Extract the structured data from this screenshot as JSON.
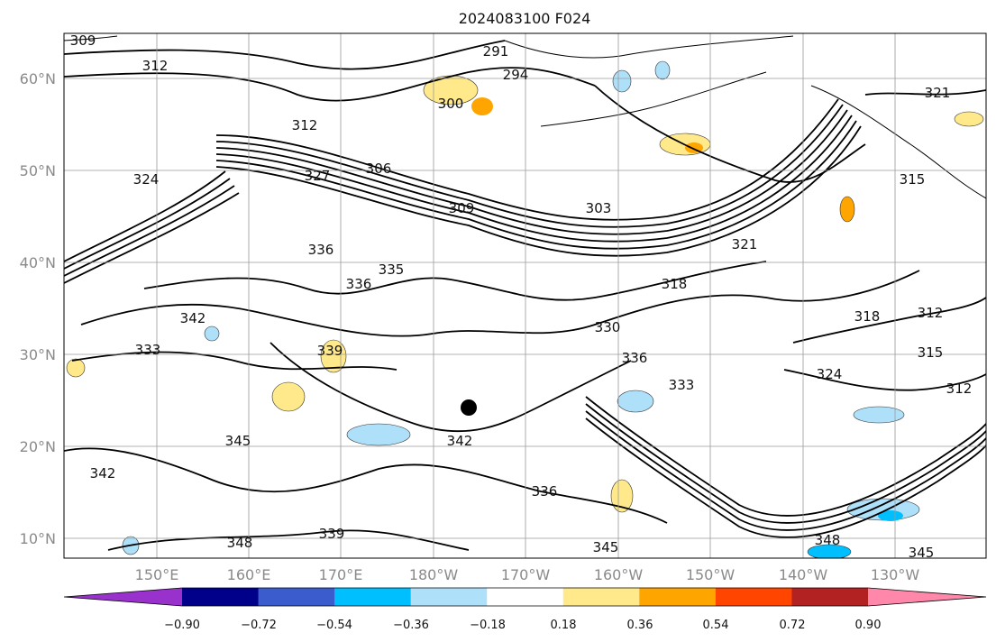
{
  "title": "2024083100 F024",
  "map": {
    "lat_labels": [
      "60°N",
      "50°N",
      "40°N",
      "30°N",
      "20°N",
      "10°N"
    ],
    "lon_labels": [
      "150°E",
      "160°E",
      "170°E",
      "180°W",
      "170°W",
      "160°W",
      "150°W",
      "140°W",
      "130°W"
    ],
    "contour_labels": [
      "309",
      "312",
      "291",
      "294",
      "300",
      "312",
      "324",
      "306",
      "327",
      "309",
      "303",
      "321",
      "315",
      "336",
      "335",
      "336",
      "318",
      "321",
      "342",
      "333",
      "339",
      "330",
      "336",
      "333",
      "342",
      "345",
      "342",
      "336",
      "339",
      "348",
      "345",
      "348",
      "324",
      "312",
      "318",
      "312",
      "315",
      "345"
    ],
    "typhoon_marker": "storm-center-dot"
  },
  "colorbar": {
    "tick_labels": [
      "−0.90",
      "−0.72",
      "−0.54",
      "−0.36",
      "−0.18",
      "0.18",
      "0.36",
      "0.54",
      "0.72",
      "0.90"
    ],
    "colors": [
      "#9932cc",
      "#00008b",
      "#3a5ccc",
      "#00bfff",
      "#afe0fa",
      "#ffffff",
      "#ffe98a",
      "#ffa500",
      "#ff4500",
      "#b22222",
      "#ff88aa"
    ]
  }
}
